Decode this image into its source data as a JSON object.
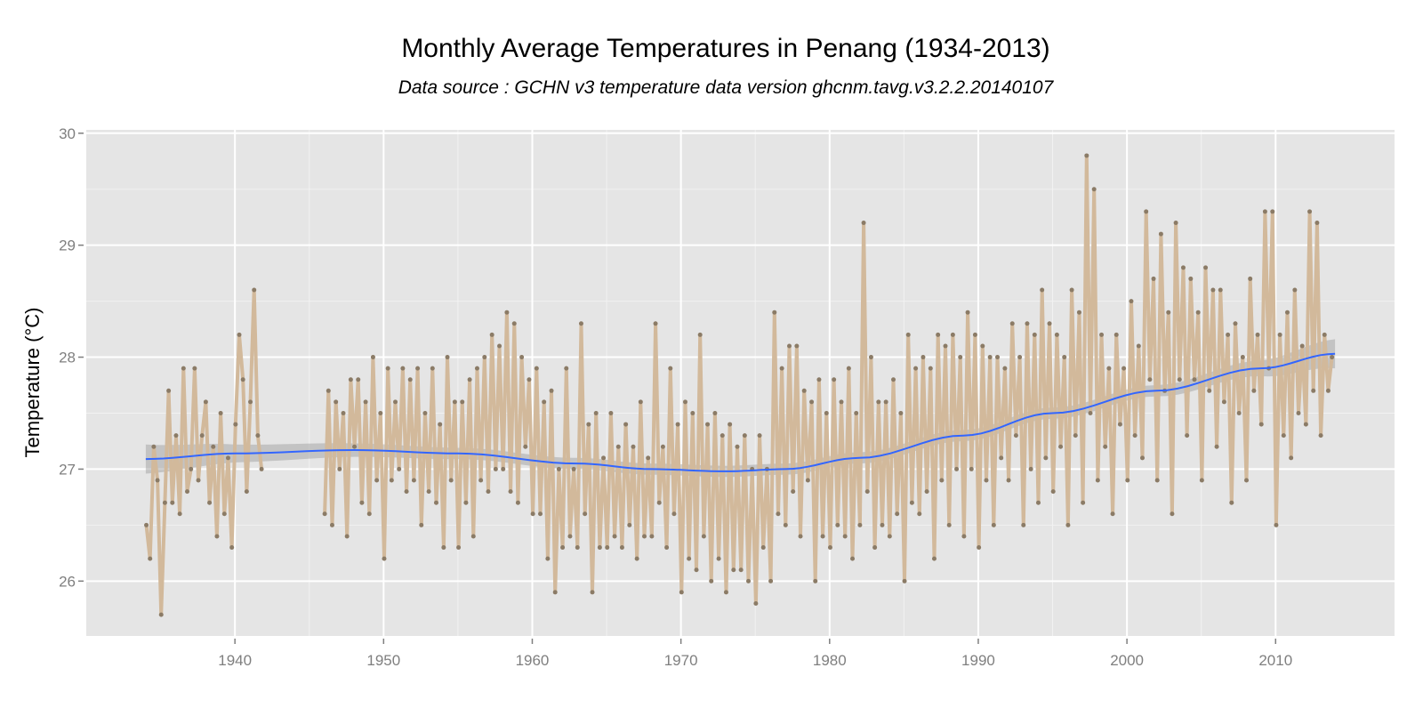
{
  "chart_data": {
    "type": "line",
    "title": "Monthly Average Temperatures in Penang (1934-2013)",
    "subtitle": "Data source : GCHN v3 temperature data version ghcnm.tavg.v3.2.2.20140107",
    "xlabel": "",
    "ylabel": "Temperature (°C)",
    "xlim": [
      1930,
      2018
    ],
    "ylim": [
      25.51,
      30.03
    ],
    "x_ticks": [
      1940,
      1950,
      1960,
      1970,
      1980,
      1990,
      2000,
      2010
    ],
    "y_ticks": [
      26,
      27,
      28,
      29,
      30
    ],
    "grid": true,
    "colors": {
      "panel": "#e5e5e5",
      "grid": "#ffffff",
      "line": "#d2b99b",
      "points": "#8b7b66",
      "smooth": "#3366ff",
      "band": "#999999"
    },
    "series_note_quarterly": "approximate values per year, sampled at four points within each year",
    "series": [
      {
        "year": 1934,
        "values": [
          26.5,
          26.2,
          27.2,
          26.9
        ]
      },
      {
        "year": 1935,
        "values": [
          25.7,
          26.7,
          27.7,
          26.7
        ]
      },
      {
        "year": 1936,
        "values": [
          27.3,
          26.6,
          27.9,
          26.8
        ]
      },
      {
        "year": 1937,
        "values": [
          27.0,
          27.9,
          26.9,
          27.3
        ]
      },
      {
        "year": 1938,
        "values": [
          27.6,
          26.7,
          27.2,
          26.4
        ]
      },
      {
        "year": 1939,
        "values": [
          27.5,
          26.6,
          27.1,
          26.3
        ]
      },
      {
        "year": 1940,
        "values": [
          27.4,
          28.2,
          27.8,
          26.8
        ]
      },
      {
        "year": 1941,
        "values": [
          27.6,
          28.6,
          27.3,
          27.0
        ]
      },
      {
        "year": 1946,
        "values": [
          26.6,
          27.7,
          26.5,
          27.6
        ]
      },
      {
        "year": 1947,
        "values": [
          27.0,
          27.5,
          26.4,
          27.8
        ]
      },
      {
        "year": 1948,
        "values": [
          27.2,
          27.8,
          26.7,
          27.6
        ]
      },
      {
        "year": 1949,
        "values": [
          26.6,
          28.0,
          26.9,
          27.5
        ]
      },
      {
        "year": 1950,
        "values": [
          26.2,
          27.9,
          26.9,
          27.6
        ]
      },
      {
        "year": 1951,
        "values": [
          27.0,
          27.9,
          26.8,
          27.8
        ]
      },
      {
        "year": 1952,
        "values": [
          26.9,
          27.9,
          26.5,
          27.5
        ]
      },
      {
        "year": 1953,
        "values": [
          26.8,
          27.9,
          26.7,
          27.4
        ]
      },
      {
        "year": 1954,
        "values": [
          26.3,
          28.0,
          26.9,
          27.6
        ]
      },
      {
        "year": 1955,
        "values": [
          26.3,
          27.6,
          26.7,
          27.8
        ]
      },
      {
        "year": 1956,
        "values": [
          26.4,
          27.9,
          26.9,
          28.0
        ]
      },
      {
        "year": 1957,
        "values": [
          26.8,
          28.2,
          27.0,
          28.1
        ]
      },
      {
        "year": 1958,
        "values": [
          27.0,
          28.4,
          26.8,
          28.3
        ]
      },
      {
        "year": 1959,
        "values": [
          26.7,
          28.0,
          27.2,
          27.8
        ]
      },
      {
        "year": 1960,
        "values": [
          26.6,
          27.9,
          26.6,
          27.6
        ]
      },
      {
        "year": 1961,
        "values": [
          26.2,
          27.7,
          25.9,
          27.0
        ]
      },
      {
        "year": 1962,
        "values": [
          26.3,
          27.9,
          26.4,
          27.0
        ]
      },
      {
        "year": 1963,
        "values": [
          26.3,
          28.3,
          26.6,
          27.4
        ]
      },
      {
        "year": 1964,
        "values": [
          25.9,
          27.5,
          26.3,
          27.1
        ]
      },
      {
        "year": 1965,
        "values": [
          26.3,
          27.5,
          26.4,
          27.2
        ]
      },
      {
        "year": 1966,
        "values": [
          26.3,
          27.4,
          26.5,
          27.2
        ]
      },
      {
        "year": 1967,
        "values": [
          26.2,
          27.6,
          26.4,
          27.1
        ]
      },
      {
        "year": 1968,
        "values": [
          26.4,
          28.3,
          26.7,
          27.2
        ]
      },
      {
        "year": 1969,
        "values": [
          26.3,
          27.9,
          26.6,
          27.4
        ]
      },
      {
        "year": 1970,
        "values": [
          25.9,
          27.6,
          26.2,
          27.5
        ]
      },
      {
        "year": 1971,
        "values": [
          26.1,
          28.2,
          26.4,
          27.4
        ]
      },
      {
        "year": 1972,
        "values": [
          26.0,
          27.5,
          26.2,
          27.3
        ]
      },
      {
        "year": 1973,
        "values": [
          25.9,
          27.4,
          26.1,
          27.2
        ]
      },
      {
        "year": 1974,
        "values": [
          26.1,
          27.3,
          26.0,
          27.0
        ]
      },
      {
        "year": 1975,
        "values": [
          25.8,
          27.3,
          26.3,
          27.0
        ]
      },
      {
        "year": 1976,
        "values": [
          26.0,
          28.4,
          26.6,
          27.9
        ]
      },
      {
        "year": 1977,
        "values": [
          26.5,
          28.1,
          26.8,
          28.1
        ]
      },
      {
        "year": 1978,
        "values": [
          26.4,
          27.7,
          26.9,
          27.6
        ]
      },
      {
        "year": 1979,
        "values": [
          26.0,
          27.8,
          26.4,
          27.5
        ]
      },
      {
        "year": 1980,
        "values": [
          26.3,
          27.8,
          26.5,
          27.6
        ]
      },
      {
        "year": 1981,
        "values": [
          26.4,
          27.9,
          26.2,
          27.5
        ]
      },
      {
        "year": 1982,
        "values": [
          26.5,
          29.2,
          26.8,
          28.0
        ]
      },
      {
        "year": 1983,
        "values": [
          26.3,
          27.6,
          26.5,
          27.6
        ]
      },
      {
        "year": 1984,
        "values": [
          26.4,
          27.8,
          26.6,
          27.5
        ]
      },
      {
        "year": 1985,
        "values": [
          26.0,
          28.2,
          26.7,
          27.9
        ]
      },
      {
        "year": 1986,
        "values": [
          26.6,
          28.0,
          26.8,
          27.9
        ]
      },
      {
        "year": 1987,
        "values": [
          26.2,
          28.2,
          26.9,
          28.1
        ]
      },
      {
        "year": 1988,
        "values": [
          26.5,
          28.2,
          27.0,
          28.0
        ]
      },
      {
        "year": 1989,
        "values": [
          26.4,
          28.4,
          27.0,
          28.2
        ]
      },
      {
        "year": 1990,
        "values": [
          26.3,
          28.1,
          26.9,
          28.0
        ]
      },
      {
        "year": 1991,
        "values": [
          26.5,
          28.0,
          27.1,
          27.9
        ]
      },
      {
        "year": 1992,
        "values": [
          26.9,
          28.3,
          27.3,
          28.0
        ]
      },
      {
        "year": 1993,
        "values": [
          26.5,
          28.3,
          27.0,
          28.2
        ]
      },
      {
        "year": 1994,
        "values": [
          26.7,
          28.6,
          27.1,
          28.3
        ]
      },
      {
        "year": 1995,
        "values": [
          26.8,
          28.2,
          27.2,
          28.0
        ]
      },
      {
        "year": 1996,
        "values": [
          26.5,
          28.6,
          27.3,
          28.4
        ]
      },
      {
        "year": 1997,
        "values": [
          26.7,
          29.8,
          27.5,
          29.5
        ]
      },
      {
        "year": 1998,
        "values": [
          26.9,
          28.2,
          27.2,
          27.9
        ]
      },
      {
        "year": 1999,
        "values": [
          26.6,
          28.2,
          27.4,
          27.9
        ]
      },
      {
        "year": 2000,
        "values": [
          26.9,
          28.5,
          27.3,
          28.1
        ]
      },
      {
        "year": 2001,
        "values": [
          27.1,
          29.3,
          27.8,
          28.7
        ]
      },
      {
        "year": 2002,
        "values": [
          26.9,
          29.1,
          27.7,
          28.4
        ]
      },
      {
        "year": 2003,
        "values": [
          26.6,
          29.2,
          27.8,
          28.8
        ]
      },
      {
        "year": 2004,
        "values": [
          27.3,
          28.7,
          27.8,
          28.4
        ]
      },
      {
        "year": 2005,
        "values": [
          26.9,
          28.8,
          27.7,
          28.6
        ]
      },
      {
        "year": 2006,
        "values": [
          27.2,
          28.6,
          27.6,
          28.2
        ]
      },
      {
        "year": 2007,
        "values": [
          26.7,
          28.3,
          27.5,
          28.0
        ]
      },
      {
        "year": 2008,
        "values": [
          26.9,
          28.7,
          27.7,
          28.2
        ]
      },
      {
        "year": 2009,
        "values": [
          27.4,
          29.3,
          27.9,
          29.3
        ]
      },
      {
        "year": 2010,
        "values": [
          26.5,
          28.2,
          27.3,
          28.4
        ]
      },
      {
        "year": 2011,
        "values": [
          27.1,
          28.6,
          27.5,
          28.1
        ]
      },
      {
        "year": 2012,
        "values": [
          27.4,
          29.3,
          27.7,
          29.2
        ]
      },
      {
        "year": 2013,
        "values": [
          27.3,
          28.2,
          27.7,
          28.0
        ]
      }
    ],
    "smooth": {
      "x": [
        1934,
        1940,
        1948,
        1955,
        1963,
        1968,
        1973,
        1977,
        1982,
        1989,
        1995,
        2002,
        2009,
        2014
      ],
      "y": [
        27.09,
        27.14,
        27.17,
        27.14,
        27.05,
        27.0,
        26.98,
        27.0,
        27.1,
        27.3,
        27.5,
        27.7,
        27.9,
        28.03
      ],
      "se": [
        0.13,
        0.08,
        0.06,
        0.05,
        0.05,
        0.05,
        0.05,
        0.05,
        0.05,
        0.05,
        0.05,
        0.05,
        0.07,
        0.13
      ]
    }
  }
}
